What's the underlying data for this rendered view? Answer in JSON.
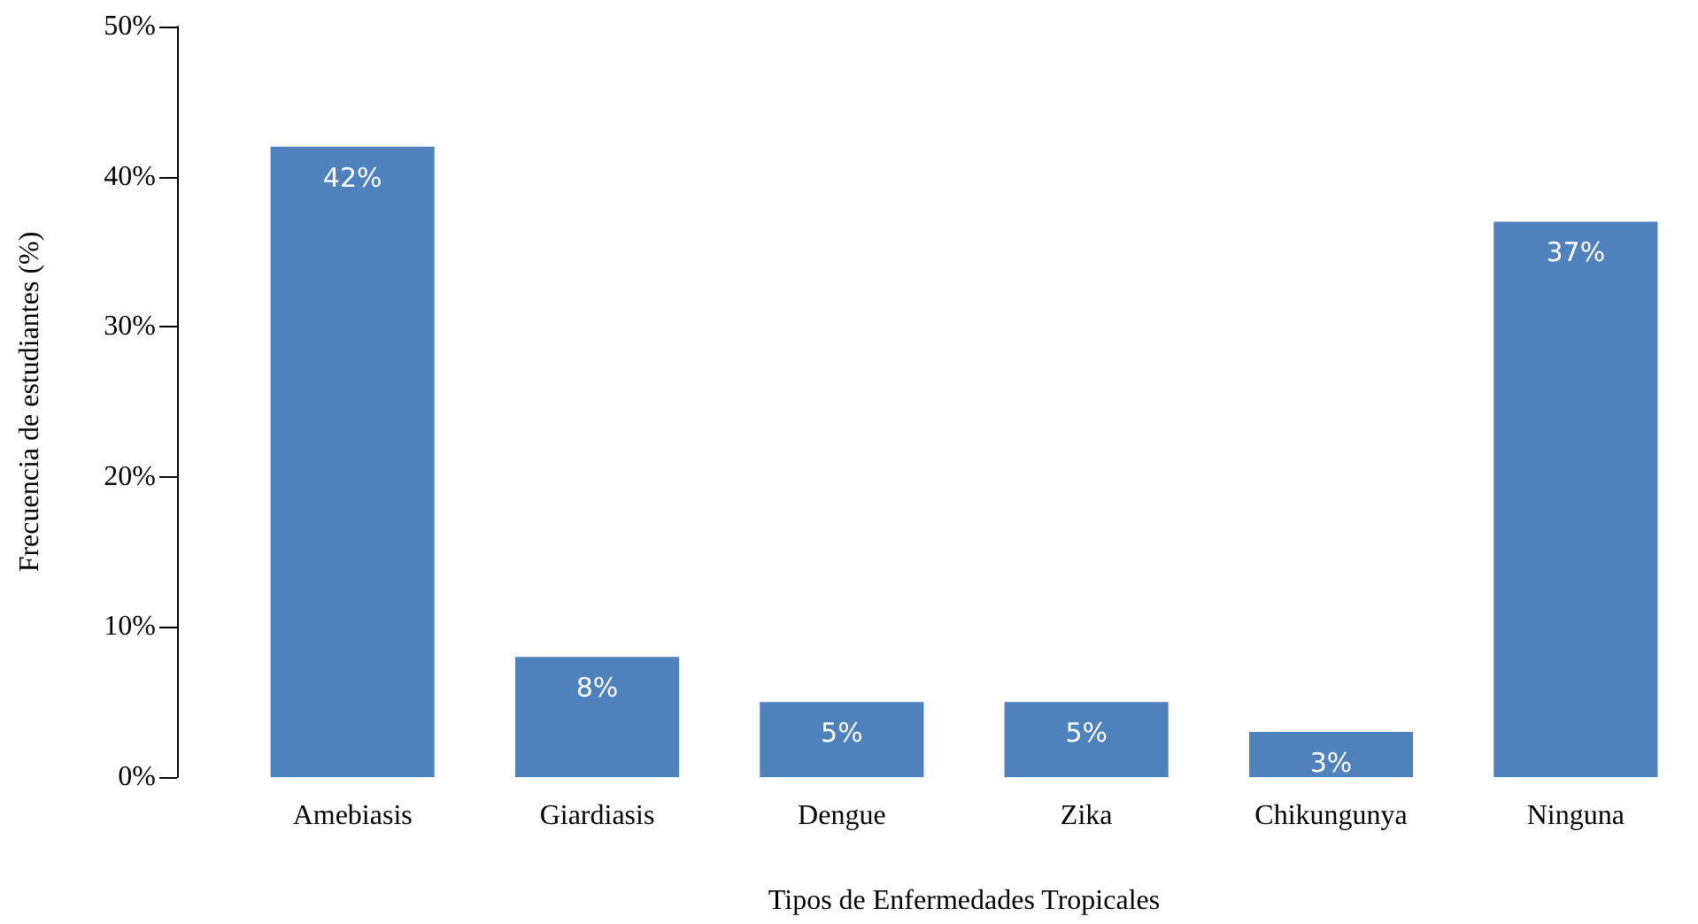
{
  "chart_data": {
    "type": "bar",
    "xlabel": "Tipos de Enfermedades Tropicales",
    "ylabel": "Frecuencia de estudiantes (%)",
    "categories": [
      "Amebiasis",
      "Giardiasis",
      "Dengue",
      "Zika",
      "Chikungunya",
      "Ninguna"
    ],
    "values": [
      42,
      8,
      5,
      5,
      3,
      37
    ],
    "color": "#4f81bd",
    "value_labels": [
      "42%",
      "8%",
      "5%",
      "5%",
      "3%",
      "37%"
    ],
    "ylim": [
      0,
      50
    ],
    "yticks": [
      {
        "value": 0,
        "label": "0%"
      },
      {
        "value": 10,
        "label": "10%"
      },
      {
        "value": 20,
        "label": "20%"
      },
      {
        "value": 30,
        "label": "30%"
      },
      {
        "value": 40,
        "label": "40%"
      },
      {
        "value": 50,
        "label": "50%"
      }
    ],
    "grid": false
  }
}
